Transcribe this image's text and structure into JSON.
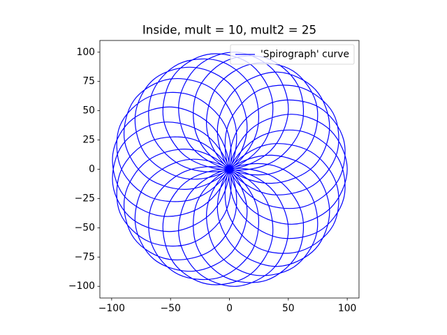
{
  "chart_data": {
    "type": "line",
    "title": "Inside, mult = 10, mult2 = 25",
    "x": [
      100,
      86,
      53,
      18,
      0,
      9,
      40,
      76,
      97,
      92,
      63,
      26,
      0,
      -1,
      24,
      60,
      88,
      91,
      69,
      32,
      0,
      -10,
      7,
      41,
      73,
      85,
      71,
      36,
      0,
      -19,
      -11,
      19,
      54,
      74,
      68,
      38,
      0,
      -27,
      -28,
      -4,
      31,
      58,
      61,
      38,
      0,
      -33,
      -43,
      -27,
      6,
      38,
      50,
      35,
      0,
      -37,
      -56,
      -48,
      -19,
      16,
      36,
      30,
      0,
      -38,
      -65,
      -66,
      -43,
      -7,
      20,
      23,
      0,
      -37,
      -70,
      -80,
      -64,
      -30,
      2,
      15,
      0,
      -34,
      -70,
      -89,
      -81,
      -51,
      -15,
      5,
      0,
      -29,
      -67,
      -92,
      -93,
      -68,
      -32,
      -4,
      0,
      -22,
      -58,
      -90,
      -99,
      -82,
      -47,
      -14,
      0,
      -14,
      -47,
      -82,
      -99,
      -90,
      -58,
      -22,
      0,
      -4,
      -32,
      -68,
      -93,
      -92,
      -67,
      -29,
      0,
      5,
      -15,
      -51,
      -81,
      -89,
      -70,
      -34,
      0,
      15,
      2,
      -30,
      -64,
      -80,
      -70,
      -37,
      0,
      23,
      20,
      -7,
      -43,
      -66,
      -65,
      -38,
      0,
      30,
      36,
      16,
      -19,
      -48,
      -56,
      -37,
      0,
      35,
      50,
      38,
      6,
      -27,
      -43,
      -33,
      0,
      38,
      61,
      58,
      31,
      -4,
      -28,
      -27,
      0,
      38,
      68,
      74,
      54,
      19,
      -11,
      -19,
      0,
      36,
      71,
      85,
      73,
      41,
      7,
      -10,
      0,
      32,
      69,
      91,
      88,
      60,
      24,
      -1,
      0,
      26,
      63,
      92,
      97,
      76,
      40,
      9,
      0,
      18,
      53,
      86
    ],
    "series": [
      {
        "name": "'Spirograph' curve",
        "color": "#0000ff",
        "values": [
          0,
          -33,
          -47,
          -34,
          0,
          37,
          58,
          53,
          25,
          -10,
          -32,
          -28,
          0,
          38,
          67,
          70,
          48,
          13,
          -15,
          -21,
          0,
          37,
          70,
          83,
          68,
          35,
          2,
          -12,
          0,
          33,
          70,
          90,
          84,
          55,
          20,
          -3,
          0,
          27,
          65,
          92,
          95,
          72,
          36,
          7,
          0,
          20,
          56,
          88,
          100,
          84,
          50,
          16,
          0,
          11,
          43,
          79,
          98,
          91,
          61,
          24,
          0,
          2,
          28,
          64,
          90,
          92,
          68,
          31,
          0,
          -8,
          11,
          46,
          77,
          87,
          71,
          35,
          0,
          -17,
          -7,
          24,
          59,
          77,
          69,
          38,
          0,
          -25,
          -24,
          1,
          37,
          62,
          63,
          38,
          0,
          -31,
          -40,
          -22,
          13,
          43,
          53,
          36,
          0,
          -36,
          -53,
          -43,
          -13,
          22,
          40,
          31,
          0,
          -38,
          -63,
          -62,
          -37,
          -1,
          24,
          25,
          0,
          -38,
          -69,
          -77,
          -59,
          -24,
          7,
          17,
          0,
          -35,
          -71,
          -87,
          -77,
          -46,
          -11,
          8,
          0,
          -31,
          -68,
          -92,
          -90,
          -64,
          -28,
          -2,
          0,
          -24,
          -61,
          -91,
          -98,
          -79,
          -43,
          -11,
          0,
          -16,
          -50,
          -84,
          -100,
          -88,
          -56,
          -20,
          0,
          -7,
          -36,
          -72,
          -95,
          -92,
          -65,
          -27,
          0,
          3,
          -20,
          -55,
          -84,
          -90,
          -70,
          -33,
          0,
          12,
          -2,
          -35,
          -68,
          -83,
          -70,
          -37,
          0,
          21,
          15,
          -13,
          -48,
          -70,
          -67,
          -38,
          0,
          28,
          32,
          10,
          -25,
          -53,
          -58,
          -37,
          0,
          34,
          47,
          33
        ]
      }
    ],
    "xlim": [
      -110,
      110
    ],
    "ylim": [
      -110,
      110
    ],
    "xticks": [
      {
        "value": -100,
        "label": "−100"
      },
      {
        "value": -50,
        "label": "−50"
      },
      0,
      50,
      100
    ],
    "yticks": [
      {
        "value": -100,
        "label": "−100"
      },
      {
        "value": -75,
        "label": "−75"
      },
      {
        "value": -50,
        "label": "−50"
      },
      {
        "value": -25,
        "label": "−25"
      },
      0,
      25,
      50,
      75,
      100
    ],
    "grid": false,
    "legend": "upper right"
  }
}
